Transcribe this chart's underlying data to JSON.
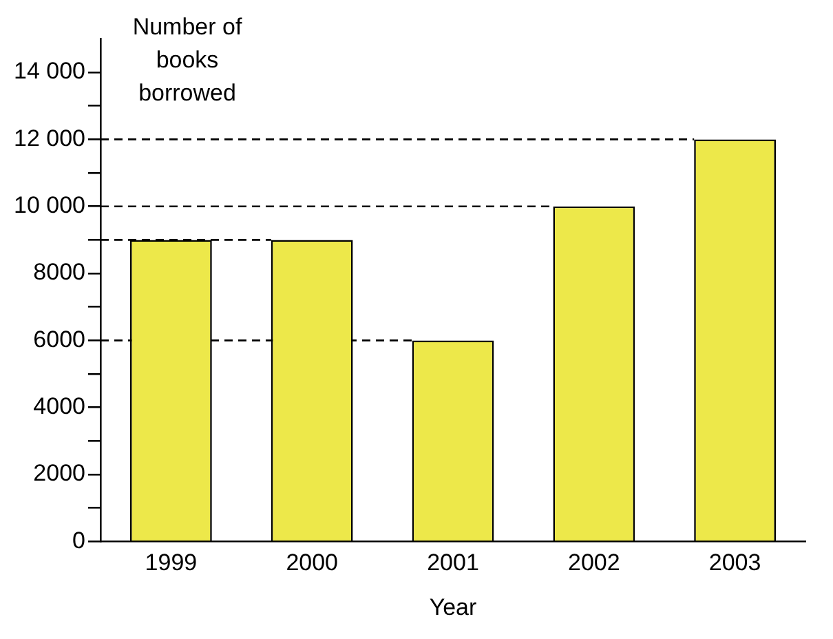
{
  "chart_data": {
    "type": "bar",
    "xlabel": "Year",
    "ylabel": "Number of books borrowed",
    "categories": [
      "1999",
      "2000",
      "2001",
      "2002",
      "2003"
    ],
    "values": [
      9000,
      9000,
      6000,
      10000,
      12000
    ],
    "color": "#ede84a",
    "ylim": [
      0,
      15000
    ],
    "yticks": [
      0,
      {
        "value": 1000,
        "label": null
      },
      2000,
      {
        "value": 3000,
        "label": null
      },
      4000,
      {
        "value": 5000,
        "label": null
      },
      6000,
      {
        "value": 7000,
        "label": null
      },
      8000,
      {
        "value": 9000,
        "label": null
      },
      {
        "value": 10000,
        "label": "10 000"
      },
      {
        "value": 11000,
        "label": null
      },
      {
        "value": 12000,
        "label": "12 000"
      },
      {
        "value": 13000,
        "label": null
      },
      {
        "value": 14000,
        "label": "14 000"
      }
    ],
    "ref_lines": [
      {
        "axis": "y",
        "value": 6000,
        "line_style": "dashed"
      },
      {
        "axis": "y",
        "value": 9000,
        "line_style": "dashed"
      },
      {
        "axis": "y",
        "value": 10000,
        "line_style": "dashed"
      },
      {
        "axis": "y",
        "value": 12000,
        "line_style": "dashed"
      }
    ]
  }
}
